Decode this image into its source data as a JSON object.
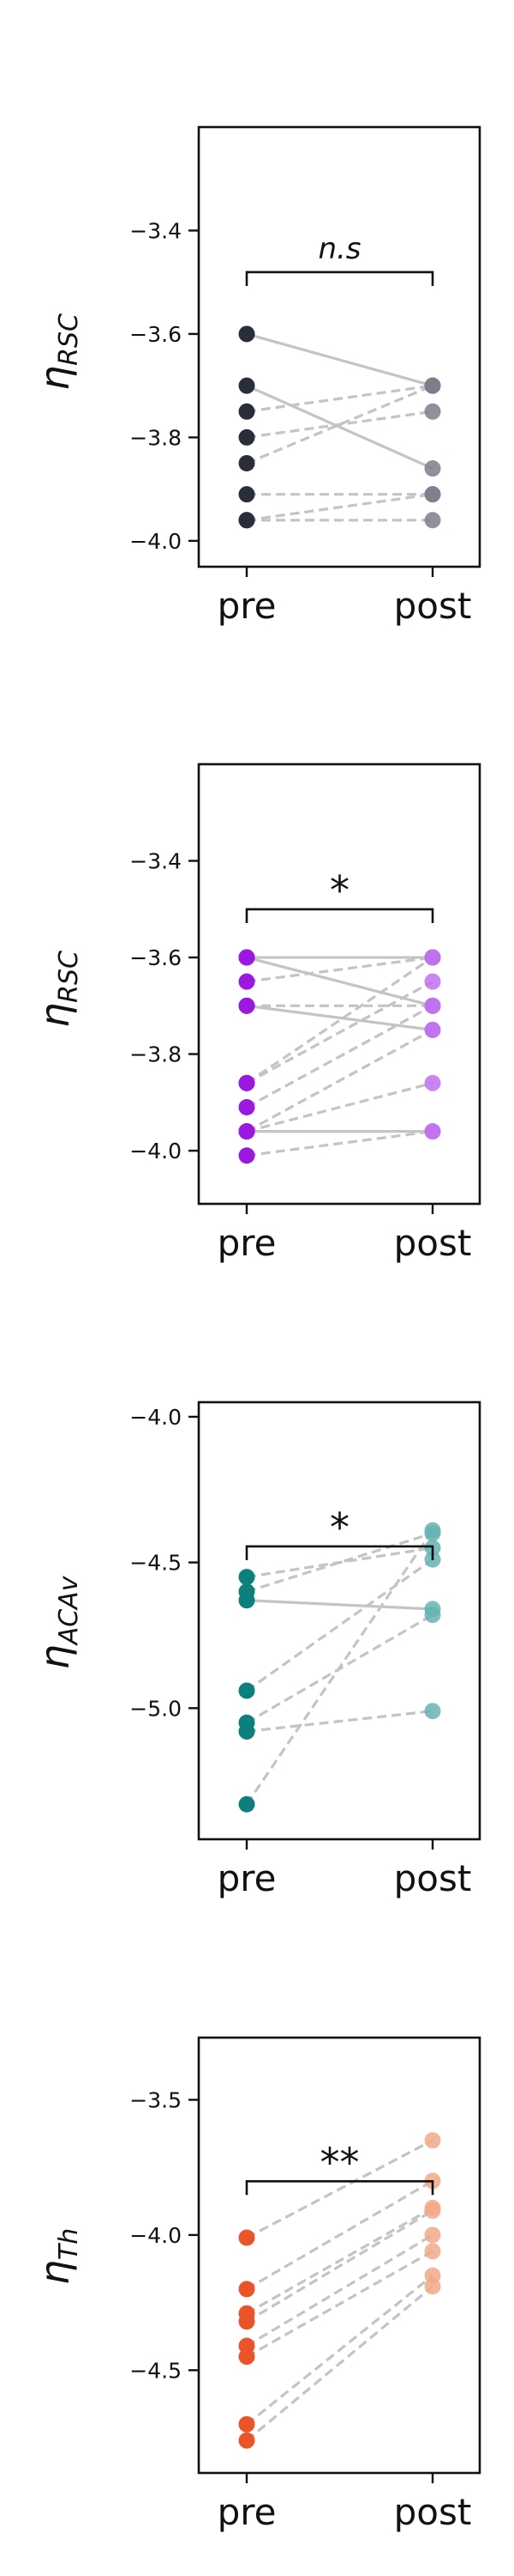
{
  "chart_data": [
    {
      "type": "paired-dot",
      "ylabel": {
        "main": "η",
        "sub": "RSC"
      },
      "categories": [
        "pre",
        "post"
      ],
      "yticks": [
        -3.4,
        -3.6,
        -3.8,
        -4.0
      ],
      "ylim": [
        -4.05,
        -3.2
      ],
      "significance": "n.s",
      "colors": {
        "pre": "#2a2d3a",
        "post": "#7b7e8a"
      },
      "pairs": [
        {
          "pre": -3.6,
          "post": -3.7,
          "style": "solid"
        },
        {
          "pre": -3.7,
          "post": -3.86,
          "style": "solid"
        },
        {
          "pre": -3.75,
          "post": -3.7,
          "style": "dashed"
        },
        {
          "pre": -3.8,
          "post": -3.75,
          "style": "dashed"
        },
        {
          "pre": -3.85,
          "post": -3.7,
          "style": "dashed"
        },
        {
          "pre": -3.91,
          "post": -3.91,
          "style": "dashed"
        },
        {
          "pre": -3.96,
          "post": -3.91,
          "style": "dashed"
        },
        {
          "pre": -3.96,
          "post": -3.96,
          "style": "dashed"
        }
      ]
    },
    {
      "type": "paired-dot",
      "ylabel": {
        "main": "η",
        "sub": "RSC"
      },
      "categories": [
        "pre",
        "post"
      ],
      "yticks": [
        -3.4,
        -3.6,
        -3.8,
        -4.0
      ],
      "ylim": [
        -4.11,
        -3.2
      ],
      "significance": "*",
      "colors": {
        "pre": "#9a18e0",
        "post": "#c170f0"
      },
      "pairs": [
        {
          "pre": -3.6,
          "post": -3.6,
          "style": "solid"
        },
        {
          "pre": -3.6,
          "post": -3.7,
          "style": "solid"
        },
        {
          "pre": -3.65,
          "post": -3.6,
          "style": "dashed"
        },
        {
          "pre": -3.7,
          "post": -3.7,
          "style": "dashed"
        },
        {
          "pre": -3.7,
          "post": -3.75,
          "style": "solid"
        },
        {
          "pre": -3.86,
          "post": -3.6,
          "style": "dashed"
        },
        {
          "pre": -3.86,
          "post": -3.65,
          "style": "dashed"
        },
        {
          "pre": -3.91,
          "post": -3.7,
          "style": "dashed"
        },
        {
          "pre": -3.96,
          "post": -3.75,
          "style": "dashed"
        },
        {
          "pre": -3.96,
          "post": -3.86,
          "style": "dashed"
        },
        {
          "pre": -3.96,
          "post": -3.96,
          "style": "solid"
        },
        {
          "pre": -4.01,
          "post": -3.96,
          "style": "dashed"
        }
      ]
    },
    {
      "type": "paired-dot",
      "ylabel": {
        "main": "η",
        "sub": "ACAv"
      },
      "categories": [
        "pre",
        "post"
      ],
      "yticks": [
        -4.0,
        -4.5,
        -5.0
      ],
      "ylim": [
        -5.45,
        -3.95
      ],
      "significance": "*",
      "colors": {
        "pre": "#0d7f7d",
        "post": "#66b4b1"
      },
      "pairs": [
        {
          "pre": -4.55,
          "post": -4.45,
          "style": "dashed"
        },
        {
          "pre": -4.6,
          "post": -4.4,
          "style": "dashed"
        },
        {
          "pre": -4.63,
          "post": -4.66,
          "style": "solid"
        },
        {
          "pre": -4.94,
          "post": -4.49,
          "style": "dashed"
        },
        {
          "pre": -5.05,
          "post": -4.68,
          "style": "dashed"
        },
        {
          "pre": -5.08,
          "post": -5.01,
          "style": "dashed"
        },
        {
          "pre": -5.33,
          "post": -4.39,
          "style": "dashed"
        }
      ]
    },
    {
      "type": "paired-dot",
      "ylabel": {
        "main": "η",
        "sub": "Th"
      },
      "categories": [
        "pre",
        "post"
      ],
      "yticks": [
        -3.5,
        -4.0,
        -4.5
      ],
      "ylim": [
        -4.88,
        -3.27
      ],
      "significance": "**",
      "colors": {
        "pre": "#ea5428",
        "post": "#f2a98a"
      },
      "pairs": [
        {
          "pre": -4.01,
          "post": -3.65,
          "style": "dashed"
        },
        {
          "pre": -4.2,
          "post": -3.8,
          "style": "dashed"
        },
        {
          "pre": -4.29,
          "post": -3.9,
          "style": "dashed"
        },
        {
          "pre": -4.32,
          "post": -3.91,
          "style": "dashed"
        },
        {
          "pre": -4.41,
          "post": -4.0,
          "style": "dashed"
        },
        {
          "pre": -4.45,
          "post": -4.06,
          "style": "dashed"
        },
        {
          "pre": -4.7,
          "post": -4.15,
          "style": "dashed"
        },
        {
          "pre": -4.76,
          "post": -4.19,
          "style": "dashed"
        }
      ]
    }
  ]
}
